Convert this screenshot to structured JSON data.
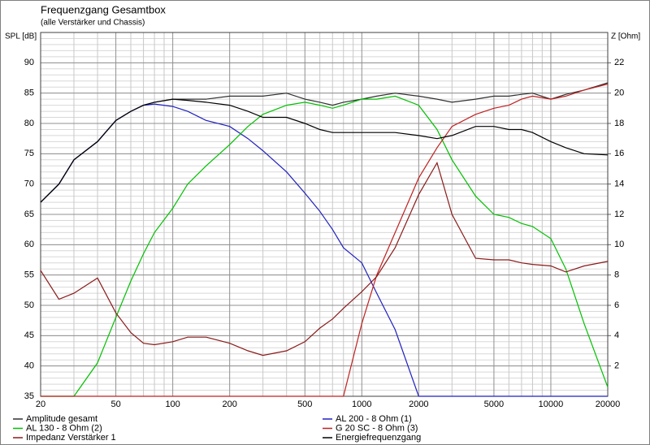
{
  "chart_data": {
    "type": "line",
    "title": "Frequenzgang Gesamtbox",
    "subtitle": "(alle Verstärker und Chassis)",
    "ylabel": "SPL [dB]",
    "y2label": "Z [Ohm]",
    "xscale": "log",
    "grid": true,
    "x": [
      20,
      25,
      30,
      40,
      50,
      60,
      70,
      80,
      100,
      120,
      150,
      200,
      250,
      300,
      400,
      500,
      600,
      700,
      800,
      1000,
      1200,
      1500,
      2000,
      2500,
      3000,
      4000,
      5000,
      6000,
      7000,
      8000,
      10000,
      12000,
      15000,
      20000
    ],
    "xlim": [
      20,
      20000
    ],
    "xticks": [
      20,
      50,
      100,
      200,
      500,
      1000,
      2000,
      5000,
      10000,
      20000
    ],
    "xminor": [
      30,
      40,
      60,
      70,
      80,
      90,
      300,
      400,
      600,
      700,
      800,
      900,
      3000,
      4000,
      6000,
      7000,
      8000,
      9000
    ],
    "ylim": [
      35,
      95
    ],
    "yticks": [
      35,
      40,
      45,
      50,
      55,
      60,
      65,
      70,
      75,
      80,
      85,
      90
    ],
    "yminor_step": 1,
    "y2lim": [
      0,
      24
    ],
    "y2ticks": [
      2,
      4,
      6,
      8,
      10,
      12,
      14,
      16,
      18,
      20,
      22
    ],
    "series": [
      {
        "name": "Amplitude gesamt",
        "color": "#303030",
        "values": [
          67,
          70,
          74,
          77,
          80.5,
          82,
          83,
          83.5,
          84,
          84,
          84,
          84.5,
          84.5,
          84.5,
          85,
          84,
          83.5,
          83,
          83.5,
          84,
          84.5,
          85,
          84.5,
          84,
          83.5,
          84,
          84.5,
          84.5,
          84.8,
          85,
          84,
          84.8,
          85.5,
          86.7
        ]
      },
      {
        "name": "AL 200 - 8 Ohm (1)",
        "color": "#2020c0",
        "values": [
          67,
          70,
          74,
          77,
          80.5,
          82,
          83,
          83.2,
          82.8,
          82,
          80.5,
          79.5,
          77.5,
          75.5,
          72,
          68.5,
          65.5,
          62.5,
          59.5,
          57,
          52,
          46,
          35,
          35,
          35,
          35,
          35,
          35,
          35,
          35,
          35,
          35,
          35,
          35
        ]
      },
      {
        "name": "AL 130 - 8 Ohm (2)",
        "color": "#00c000",
        "values": [
          35,
          35,
          35,
          40.5,
          48,
          54,
          58.5,
          62,
          66,
          70,
          73,
          76.5,
          79.5,
          81.5,
          83,
          83.5,
          83,
          82.5,
          83,
          84,
          84,
          84.5,
          83,
          79,
          74,
          68,
          65,
          64.5,
          63.5,
          63,
          61,
          56,
          47,
          36.5
        ]
      },
      {
        "name": "G 20 SC - 8 Ohm (3)",
        "color": "#c02020",
        "values": [
          35,
          35,
          35,
          35,
          35,
          35,
          35,
          35,
          35,
          35,
          35,
          35,
          35,
          35,
          35,
          35,
          35,
          35,
          35,
          47,
          55,
          62,
          71,
          76,
          79.5,
          81.5,
          82.5,
          83,
          84,
          84.5,
          84,
          84.5,
          85.5,
          86.5
        ]
      },
      {
        "name": "Impedanz Verstärker 1",
        "color": "#8b1a1a",
        "axis": "y2",
        "values": [
          8.3,
          6.4,
          6.8,
          7.8,
          5.5,
          4.2,
          3.5,
          3.4,
          3.6,
          3.9,
          3.9,
          3.5,
          3,
          2.7,
          3,
          3.6,
          4.5,
          5.1,
          5.8,
          6.9,
          7.9,
          9.8,
          13.3,
          15.4,
          12,
          9.1,
          9,
          9,
          8.8,
          8.7,
          8.6,
          8.2,
          8.6,
          8.9
        ]
      },
      {
        "name": "Energiefrequenzgang",
        "color": "#000000",
        "values": [
          67,
          70,
          74,
          77,
          80.5,
          82,
          83,
          83.5,
          84,
          83.8,
          83.5,
          83,
          82,
          81,
          81,
          80,
          79,
          78.5,
          78.5,
          78.5,
          78.5,
          78.5,
          78,
          77.5,
          78,
          79.5,
          79.5,
          79,
          79,
          78.5,
          77,
          76,
          75,
          74.8
        ]
      }
    ]
  }
}
